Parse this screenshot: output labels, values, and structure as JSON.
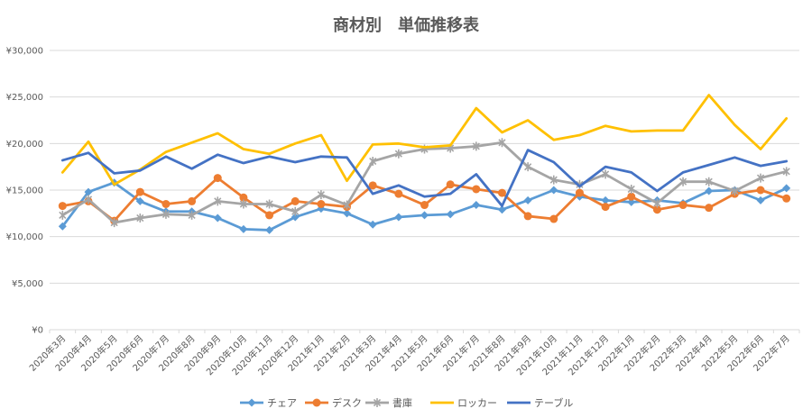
{
  "chart_data": {
    "type": "line",
    "title": "商材別　単価推移表",
    "xlabel": "",
    "ylabel": "",
    "ylim": [
      0,
      30000
    ],
    "yticks": [
      0,
      5000,
      10000,
      15000,
      20000,
      25000,
      30000
    ],
    "ytick_labels": [
      "¥0",
      "¥5,000",
      "¥10,000",
      "¥15,000",
      "¥20,000",
      "¥25,000",
      "¥30,000"
    ],
    "grid": true,
    "legend_position": "bottom",
    "categories": [
      "2020年3月",
      "2020年4月",
      "2020年5月",
      "2020年6月",
      "2020年7月",
      "2020年8月",
      "2020年9月",
      "2020年10月",
      "2020年11月",
      "2020年12月",
      "2021年1月",
      "2021年2月",
      "2021年3月",
      "2021年4月",
      "2021年5月",
      "2021年6月",
      "2021年7月",
      "2021年8月",
      "2021年9月",
      "2021年10月",
      "2021年11月",
      "2021年12月",
      "2022年1月",
      "2022年2月",
      "2022年3月",
      "2022年4月",
      "2022年5月",
      "2022年6月",
      "2022年7月"
    ],
    "series": [
      {
        "name": "チェア",
        "color": "#5B9BD5",
        "marker": "diamond",
        "values": [
          11100,
          14800,
          15800,
          13800,
          12700,
          12700,
          12000,
          10800,
          10700,
          12100,
          13000,
          12500,
          11300,
          12100,
          12300,
          12400,
          13400,
          12900,
          13900,
          15000,
          14300,
          13900,
          13700,
          13900,
          13600,
          14900,
          15000,
          13900,
          15200
        ]
      },
      {
        "name": "デスク",
        "color": "#ED7D31",
        "marker": "circle",
        "values": [
          13300,
          13800,
          11700,
          14800,
          13500,
          13800,
          16300,
          14200,
          12300,
          13800,
          13500,
          13200,
          15500,
          14600,
          13400,
          15600,
          15100,
          14700,
          12200,
          11900,
          14700,
          13200,
          14300,
          12900,
          13400,
          13100,
          14600,
          15000,
          14100
        ]
      },
      {
        "name": "書庫",
        "color": "#A5A5A5",
        "marker": "star",
        "values": [
          12300,
          14000,
          11500,
          12000,
          12400,
          12300,
          13800,
          13500,
          13500,
          12700,
          14500,
          13400,
          18100,
          18900,
          19400,
          19500,
          19700,
          20100,
          17500,
          16100,
          15600,
          16700,
          15100,
          13600,
          15900,
          15900,
          14900,
          16300,
          17000
        ]
      },
      {
        "name": "ロッカー",
        "color": "#FFC000",
        "marker": "none",
        "values": [
          16900,
          20200,
          15600,
          17200,
          19100,
          20100,
          21100,
          19400,
          18900,
          20000,
          20900,
          16000,
          19900,
          20000,
          19600,
          19800,
          23800,
          21200,
          22500,
          20400,
          20900,
          21900,
          21300,
          21400,
          21400,
          25200,
          22000,
          19400,
          22700
        ]
      },
      {
        "name": "テーブル",
        "color": "#4472C4",
        "marker": "none",
        "values": [
          18200,
          19000,
          16800,
          17100,
          18600,
          17300,
          18800,
          17900,
          18600,
          18000,
          18600,
          18500,
          14600,
          15500,
          14300,
          14600,
          16700,
          13300,
          19300,
          18000,
          15400,
          17500,
          16900,
          14900,
          16900,
          17700,
          18500,
          17600,
          18100
        ]
      }
    ]
  }
}
